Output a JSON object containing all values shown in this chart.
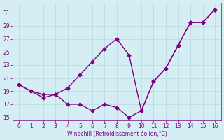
{
  "line1_x": [
    0,
    1,
    2,
    3,
    4,
    5,
    6,
    7,
    8,
    9,
    10,
    11,
    12,
    13,
    14,
    15,
    16
  ],
  "line1_y": [
    20.0,
    19.0,
    18.5,
    18.5,
    19.5,
    21.5,
    23.5,
    25.5,
    27.0,
    24.5,
    16.0,
    20.5,
    22.5,
    26.0,
    29.5,
    29.5,
    31.5
  ],
  "line2_x": [
    0,
    1,
    2,
    3,
    4,
    5,
    6,
    7,
    8,
    9,
    10,
    11,
    12,
    13,
    14,
    15,
    16
  ],
  "line2_y": [
    20.0,
    19.0,
    18.0,
    18.5,
    17.0,
    17.0,
    16.0,
    17.0,
    16.5,
    15.0,
    16.0,
    20.5,
    22.5,
    26.0,
    29.5,
    29.5,
    31.5
  ],
  "line_color": "#800080",
  "marker": "D",
  "markersize": 2.5,
  "xlabel": "Windchill (Refroidissement éolien,°C)",
  "xlim": [
    -0.5,
    16.5
  ],
  "ylim": [
    14.5,
    32.5
  ],
  "xticks": [
    0,
    1,
    2,
    3,
    4,
    5,
    6,
    7,
    8,
    9,
    10,
    11,
    12,
    13,
    14,
    15,
    16
  ],
  "yticks": [
    15,
    17,
    19,
    21,
    23,
    25,
    27,
    29,
    31
  ],
  "background_color": "#d4eef4",
  "grid_color": "#b8d8e0",
  "tick_color": "#800080",
  "label_color": "#800080",
  "linewidth": 1.0
}
